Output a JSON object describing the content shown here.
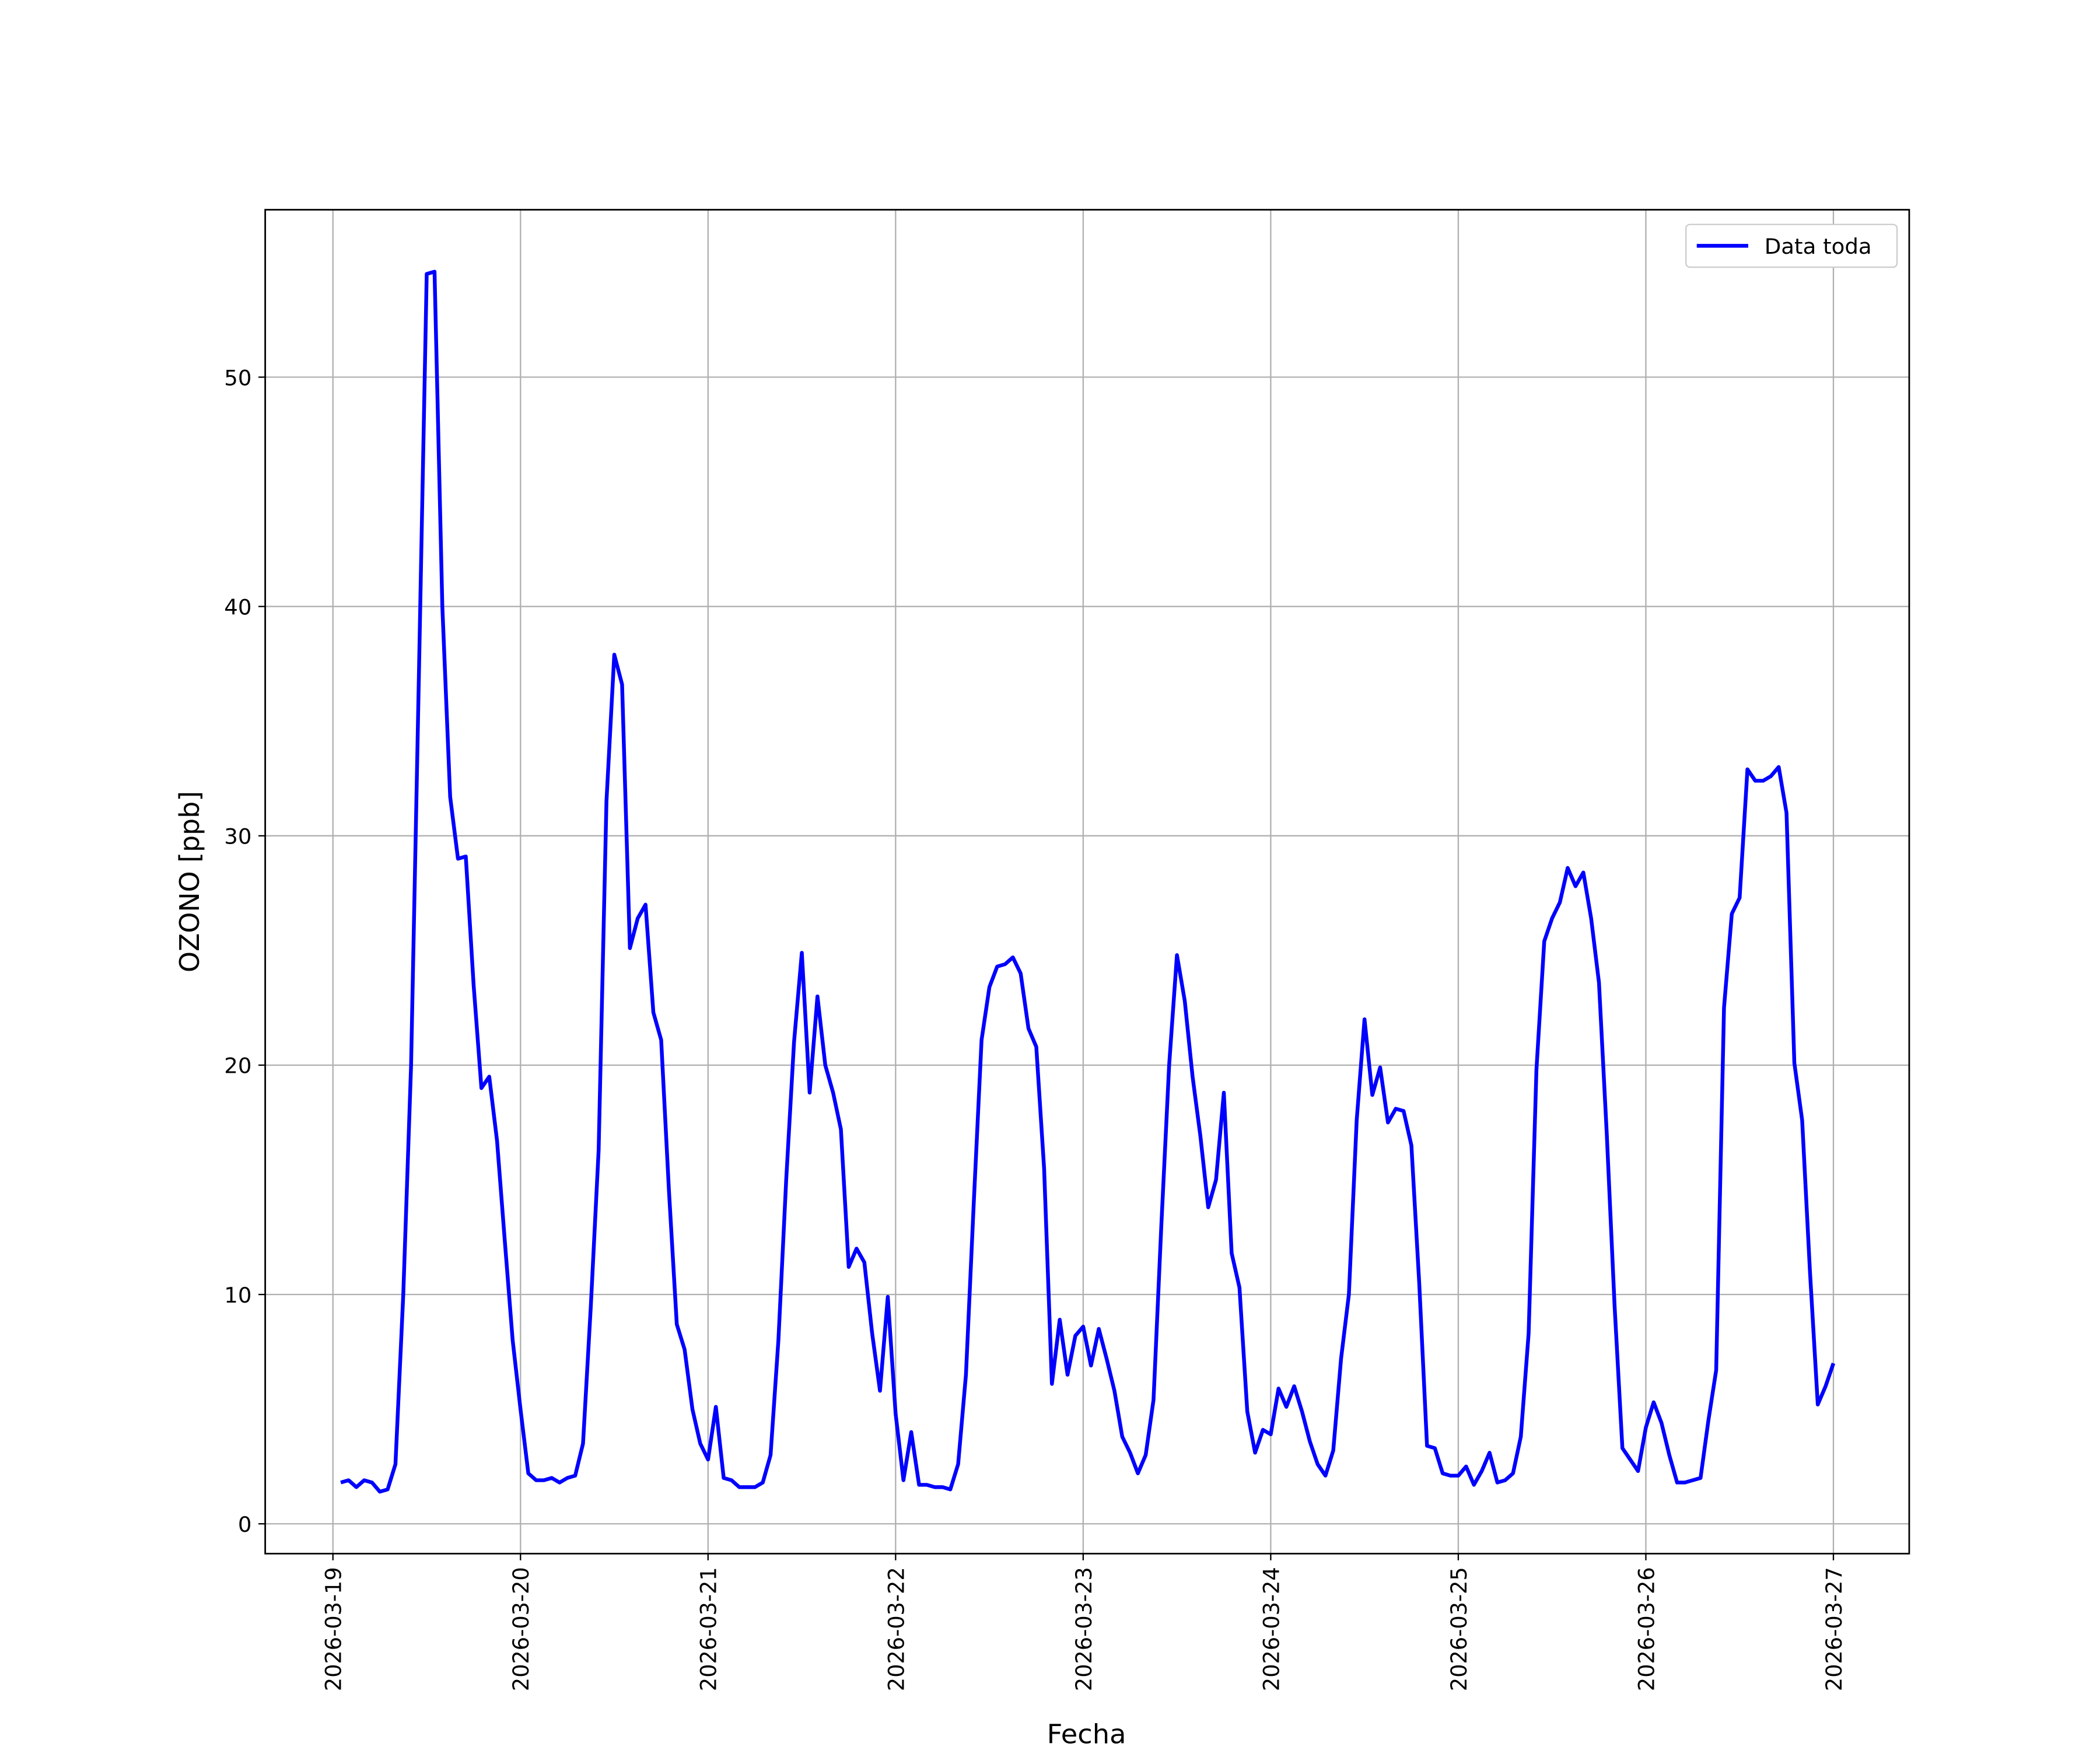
{
  "chart_data": {
    "type": "line",
    "xlabel": "Fecha",
    "ylabel": "OZONO [ppb]",
    "x": [
      "2026-03-19 01:00",
      "2026-03-19 02:00",
      "2026-03-19 03:00",
      "2026-03-19 04:00",
      "2026-03-19 05:00",
      "2026-03-19 06:00",
      "2026-03-19 07:00",
      "2026-03-19 08:00",
      "2026-03-19 09:00",
      "2026-03-19 10:00",
      "2026-03-19 11:00",
      "2026-03-19 12:00",
      "2026-03-19 13:00",
      "2026-03-19 14:00",
      "2026-03-19 15:00",
      "2026-03-19 16:00",
      "2026-03-19 17:00",
      "2026-03-19 18:00",
      "2026-03-19 19:00",
      "2026-03-19 20:00",
      "2026-03-19 21:00",
      "2026-03-19 22:00",
      "2026-03-19 23:00",
      "2026-03-20 00:00",
      "2026-03-20 01:00",
      "2026-03-20 02:00",
      "2026-03-20 03:00",
      "2026-03-20 04:00",
      "2026-03-20 05:00",
      "2026-03-20 06:00",
      "2026-03-20 07:00",
      "2026-03-20 08:00",
      "2026-03-20 09:00",
      "2026-03-20 10:00",
      "2026-03-20 11:00",
      "2026-03-20 12:00",
      "2026-03-20 13:00",
      "2026-03-20 14:00",
      "2026-03-20 15:00",
      "2026-03-20 16:00",
      "2026-03-20 17:00",
      "2026-03-20 18:00",
      "2026-03-20 19:00",
      "2026-03-20 20:00",
      "2026-03-20 21:00",
      "2026-03-20 22:00",
      "2026-03-20 23:00",
      "2026-03-21 00:00",
      "2026-03-21 01:00",
      "2026-03-21 02:00",
      "2026-03-21 03:00",
      "2026-03-21 04:00",
      "2026-03-21 05:00",
      "2026-03-21 06:00",
      "2026-03-21 07:00",
      "2026-03-21 08:00",
      "2026-03-21 09:00",
      "2026-03-21 10:00",
      "2026-03-21 11:00",
      "2026-03-21 12:00",
      "2026-03-21 13:00",
      "2026-03-21 14:00",
      "2026-03-21 15:00",
      "2026-03-21 16:00",
      "2026-03-21 17:00",
      "2026-03-21 18:00",
      "2026-03-21 19:00",
      "2026-03-21 20:00",
      "2026-03-21 21:00",
      "2026-03-21 22:00",
      "2026-03-21 23:00",
      "2026-03-22 00:00",
      "2026-03-22 01:00",
      "2026-03-22 02:00",
      "2026-03-22 03:00",
      "2026-03-22 04:00",
      "2026-03-22 05:00",
      "2026-03-22 06:00",
      "2026-03-22 07:00",
      "2026-03-22 08:00",
      "2026-03-22 09:00",
      "2026-03-22 10:00",
      "2026-03-22 11:00",
      "2026-03-22 12:00",
      "2026-03-22 13:00",
      "2026-03-22 14:00",
      "2026-03-22 15:00",
      "2026-03-22 16:00",
      "2026-03-22 17:00",
      "2026-03-22 18:00",
      "2026-03-22 19:00",
      "2026-03-22 20:00",
      "2026-03-22 21:00",
      "2026-03-22 22:00",
      "2026-03-22 23:00",
      "2026-03-23 00:00",
      "2026-03-23 01:00",
      "2026-03-23 02:00",
      "2026-03-23 03:00",
      "2026-03-23 04:00",
      "2026-03-23 05:00",
      "2026-03-23 06:00",
      "2026-03-23 07:00",
      "2026-03-23 08:00",
      "2026-03-23 09:00",
      "2026-03-23 10:00",
      "2026-03-23 11:00",
      "2026-03-23 12:00",
      "2026-03-23 13:00",
      "2026-03-23 14:00",
      "2026-03-23 15:00",
      "2026-03-23 16:00",
      "2026-03-23 17:00",
      "2026-03-23 18:00",
      "2026-03-23 19:00",
      "2026-03-23 20:00",
      "2026-03-23 21:00",
      "2026-03-23 22:00",
      "2026-03-23 23:00",
      "2026-03-24 00:00",
      "2026-03-24 01:00",
      "2026-03-24 02:00",
      "2026-03-24 03:00",
      "2026-03-24 04:00",
      "2026-03-24 05:00",
      "2026-03-24 06:00",
      "2026-03-24 07:00",
      "2026-03-24 08:00",
      "2026-03-24 09:00",
      "2026-03-24 10:00",
      "2026-03-24 11:00",
      "2026-03-24 12:00",
      "2026-03-24 13:00",
      "2026-03-24 14:00",
      "2026-03-24 15:00",
      "2026-03-24 16:00",
      "2026-03-24 17:00",
      "2026-03-24 18:00",
      "2026-03-24 19:00",
      "2026-03-24 20:00",
      "2026-03-24 21:00",
      "2026-03-24 22:00",
      "2026-03-24 23:00",
      "2026-03-25 00:00",
      "2026-03-25 01:00",
      "2026-03-25 02:00",
      "2026-03-25 03:00",
      "2026-03-25 04:00",
      "2026-03-25 05:00",
      "2026-03-25 06:00",
      "2026-03-25 07:00",
      "2026-03-25 08:00",
      "2026-03-25 09:00",
      "2026-03-25 10:00",
      "2026-03-25 11:00",
      "2026-03-25 12:00",
      "2026-03-25 13:00",
      "2026-03-25 14:00",
      "2026-03-25 15:00",
      "2026-03-25 16:00",
      "2026-03-25 17:00",
      "2026-03-25 18:00",
      "2026-03-25 19:00",
      "2026-03-25 20:00",
      "2026-03-25 21:00",
      "2026-03-25 22:00",
      "2026-03-25 23:00",
      "2026-03-26 00:00",
      "2026-03-26 01:00",
      "2026-03-26 02:00",
      "2026-03-26 03:00",
      "2026-03-26 04:00",
      "2026-03-26 05:00",
      "2026-03-26 06:00",
      "2026-03-26 07:00",
      "2026-03-26 08:00",
      "2026-03-26 09:00",
      "2026-03-26 10:00",
      "2026-03-26 11:00",
      "2026-03-26 12:00",
      "2026-03-26 13:00",
      "2026-03-26 14:00",
      "2026-03-26 15:00",
      "2026-03-26 16:00",
      "2026-03-26 17:00",
      "2026-03-26 18:00",
      "2026-03-26 19:00",
      "2026-03-26 20:00",
      "2026-03-26 21:00",
      "2026-03-26 22:00",
      "2026-03-26 23:00",
      "2026-03-27 00:00"
    ],
    "series": [
      {
        "name": "Data toda",
        "color": "#0000ff",
        "values": [
          1.8,
          1.9,
          1.6,
          1.9,
          1.8,
          1.4,
          1.5,
          2.6,
          10,
          20,
          37,
          54.5,
          54.6,
          40,
          31.7,
          29,
          29.1,
          23.5,
          19,
          19.5,
          16.7,
          12.3,
          8,
          5,
          2.2,
          1.9,
          1.9,
          2.0,
          1.8,
          2.0,
          2.1,
          3.5,
          9.5,
          16.3,
          31.5,
          37.9,
          36.6,
          25.1,
          26.4,
          27,
          22.3,
          21.1,
          14.5,
          8.7,
          7.6,
          5,
          3.5,
          2.8,
          5.1,
          2,
          1.9,
          1.6,
          1.6,
          1.6,
          1.8,
          3,
          8,
          15,
          21,
          24.9,
          18.8,
          23,
          20,
          18.8,
          17.2,
          11.2,
          12,
          11.4,
          8.3,
          5.8,
          9.9,
          4.8,
          1.9,
          4,
          1.7,
          1.7,
          1.6,
          1.6,
          1.5,
          2.6,
          6.5,
          14,
          21.1,
          23.4,
          24.3,
          24.4,
          24.7,
          24,
          21.6,
          20.8,
          15.5,
          6.1,
          8.9,
          6.5,
          8.2,
          8.6,
          6.9,
          8.5,
          7.2,
          5.8,
          3.8,
          3.1,
          2.2,
          3,
          5.4,
          13,
          20,
          24.8,
          22.8,
          19.5,
          16.9,
          13.8,
          15,
          18.8,
          11.8,
          10.3,
          4.9,
          3.1,
          4.1,
          3.9,
          5.9,
          5.1,
          6,
          4.9,
          3.6,
          2.6,
          2.1,
          3.2,
          7.2,
          10,
          17.6,
          22,
          18.7,
          19.9,
          17.5,
          18.1,
          18,
          16.5,
          10.5,
          3.4,
          3.3,
          2.2,
          2.1,
          2.1,
          2.5,
          1.7,
          2.3,
          3.1,
          1.8,
          1.9,
          2.2,
          3.8,
          8.3,
          19.8,
          25.4,
          26.4,
          27.1,
          28.6,
          27.8,
          28.4,
          26.4,
          23.6,
          17,
          9.5,
          3.3,
          2.8,
          2.3,
          4.2,
          5.3,
          4.4,
          3,
          1.8,
          1.8,
          1.9,
          2,
          4.5,
          6.7,
          22.5,
          26.6,
          27.3,
          32.9,
          32.4,
          32.4,
          32.6,
          33,
          31,
          20.1,
          17.6,
          11,
          5.2,
          6,
          7
        ]
      }
    ],
    "xlim": [
      "2026-03-18 15:20",
      "2026-03-27 09:42"
    ],
    "xticks": [
      "2026-03-19",
      "2026-03-20",
      "2026-03-21",
      "2026-03-22",
      "2026-03-23",
      "2026-03-24",
      "2026-03-25",
      "2026-03-26",
      "2026-03-27"
    ],
    "ylim": [
      -1.3,
      57.3
    ],
    "yticks": [
      0,
      10,
      20,
      30,
      40,
      50
    ],
    "grid": true,
    "legend": "upper right"
  }
}
